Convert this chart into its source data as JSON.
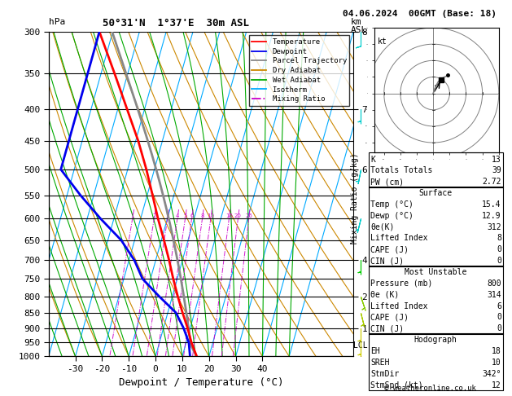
{
  "title_left": "50°31'N  1°37'E  30m ASL",
  "title_right": "04.06.2024  00GMT (Base: 18)",
  "xlabel": "Dewpoint / Temperature (°C)",
  "ylabel_left": "hPa",
  "bg_color": "#ffffff",
  "isotherm_color": "#00aaff",
  "dryadiabat_color": "#cc8800",
  "wetadiabat_color": "#00aa00",
  "mixratio_color": "#cc00cc",
  "temp_profile_color": "#ff0000",
  "dewp_profile_color": "#0000ee",
  "parcel_color": "#888888",
  "legend_items": [
    {
      "label": "Temperature",
      "color": "#ff0000",
      "ls": "-"
    },
    {
      "label": "Dewpoint",
      "color": "#0000ee",
      "ls": "-"
    },
    {
      "label": "Parcel Trajectory",
      "color": "#888888",
      "ls": "-"
    },
    {
      "label": "Dry Adiabat",
      "color": "#cc8800",
      "ls": "-"
    },
    {
      "label": "Wet Adiabat",
      "color": "#00aa00",
      "ls": "-"
    },
    {
      "label": "Isotherm",
      "color": "#00aaff",
      "ls": "-"
    },
    {
      "label": "Mixing Ratio",
      "color": "#cc00cc",
      "ls": "-."
    }
  ],
  "pressures": [
    300,
    350,
    400,
    450,
    500,
    550,
    600,
    650,
    700,
    750,
    800,
    850,
    900,
    950,
    1000
  ],
  "temp_p": [
    1000,
    950,
    900,
    850,
    800,
    750,
    700,
    650,
    600,
    550,
    500,
    450,
    400,
    350,
    300
  ],
  "temp_T": [
    15.4,
    12.0,
    9.0,
    5.5,
    2.0,
    -1.5,
    -5.0,
    -9.0,
    -13.5,
    -18.0,
    -23.0,
    -29.0,
    -36.5,
    -45.0,
    -55.0
  ],
  "dewp_T": [
    12.9,
    11.0,
    7.5,
    3.0,
    -5.0,
    -13.0,
    -18.0,
    -25.0,
    -35.0,
    -45.0,
    -55.0,
    -55.0,
    -55.0,
    -55.0,
    -55.0
  ],
  "km_p": [
    300,
    400,
    500,
    700,
    800,
    900
  ],
  "km_vals": [
    8,
    7,
    6,
    4,
    2,
    1
  ],
  "wind_data": [
    [
      300,
      0,
      8
    ],
    [
      400,
      0,
      6
    ],
    [
      500,
      1,
      5
    ],
    [
      600,
      1,
      4
    ],
    [
      700,
      0,
      3
    ],
    [
      800,
      -1,
      3
    ],
    [
      850,
      -1,
      4
    ],
    [
      900,
      0,
      5
    ],
    [
      950,
      0,
      5
    ],
    [
      1000,
      0,
      4
    ]
  ],
  "wind_colors": [
    "#00cccc",
    "#00cccc",
    "#00cccc",
    "#00cccc",
    "#00cc00",
    "#88cc00",
    "#aacc00",
    "#cccc00",
    "#cccc00",
    "#ccaa00"
  ],
  "mixing_ratio_vals": [
    1,
    2,
    3,
    4,
    5,
    6,
    8,
    10,
    16,
    20,
    26
  ],
  "table_rows": [
    [
      "K",
      "13"
    ],
    [
      "Totals Totals",
      "39"
    ],
    [
      "PW (cm)",
      "2.72"
    ],
    [
      "__Surface__",
      ""
    ],
    [
      "Temp (°C)",
      "15.4"
    ],
    [
      "Dewp (°C)",
      "12.9"
    ],
    [
      "θe(K)",
      "312"
    ],
    [
      "Lifted Index",
      "8"
    ],
    [
      "CAPE (J)",
      "0"
    ],
    [
      "CIN (J)",
      "0"
    ],
    [
      "__Most Unstable__",
      ""
    ],
    [
      "Pressure (mb)",
      "800"
    ],
    [
      "θe (K)",
      "314"
    ],
    [
      "Lifted Index",
      "6"
    ],
    [
      "CAPE (J)",
      "0"
    ],
    [
      "CIN (J)",
      "0"
    ],
    [
      "__Hodograph__",
      ""
    ],
    [
      "EH",
      "18"
    ],
    [
      "SREH",
      "10"
    ],
    [
      "StmDir",
      "342°"
    ],
    [
      "StmSpd (kt)",
      "12"
    ]
  ],
  "copyright": "© weatheronline.co.uk"
}
